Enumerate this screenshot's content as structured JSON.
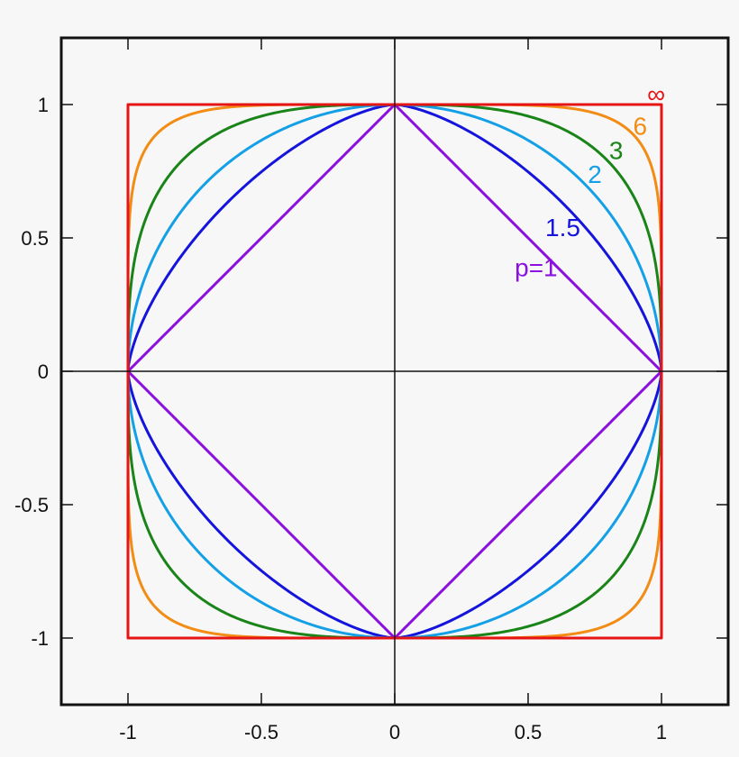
{
  "chart_data": {
    "type": "line",
    "title": "",
    "xlabel": "",
    "ylabel": "",
    "xlim": [
      -1.25,
      1.25
    ],
    "ylim": [
      -1.25,
      1.25
    ],
    "x_ticks": [
      -1,
      -0.5,
      0,
      0.5,
      1
    ],
    "y_ticks": [
      -1,
      -0.5,
      0,
      0.5,
      1
    ],
    "x_tick_labels": [
      "-1",
      "-0.5",
      "0",
      "0.5",
      "1"
    ],
    "y_tick_labels": [
      "-1",
      "-0.5",
      "0",
      "0.5",
      "1"
    ],
    "grid": false,
    "axes_through_origin": true,
    "series": [
      {
        "name": "p=1",
        "p": 1,
        "color": "#8b10e0",
        "label_at": [
          0.53,
          0.39
        ]
      },
      {
        "name": "1.5",
        "p": 1.5,
        "color": "#1414dc",
        "label_at": [
          0.63,
          0.54
        ]
      },
      {
        "name": "2",
        "p": 2,
        "color": "#14a0e6",
        "label_at": [
          0.75,
          0.74
        ]
      },
      {
        "name": "3",
        "p": 3,
        "color": "#1a8418",
        "label_at": [
          0.83,
          0.83
        ]
      },
      {
        "name": "6",
        "p": 6,
        "color": "#f28c14",
        "label_at": [
          0.92,
          0.92
        ]
      },
      {
        "name": "∞",
        "p": "inf",
        "color": "#e61414",
        "label_at": [
          0.98,
          1.04
        ]
      }
    ]
  }
}
